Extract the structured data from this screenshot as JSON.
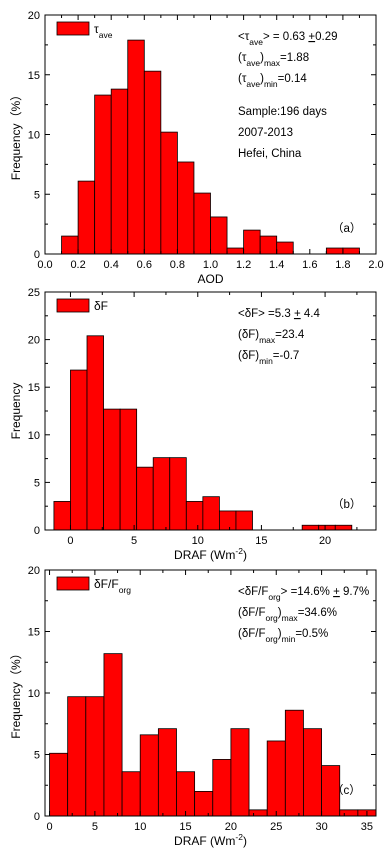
{
  "chart_data": [
    {
      "type": "bar",
      "panel": "(a)",
      "xlabel": "AOD",
      "ylabel": "Frequency（%）",
      "xlim": [
        0.0,
        2.0
      ],
      "ylim": [
        0,
        20
      ],
      "xticks": [
        "0.0",
        "0.2",
        "0.4",
        "0.6",
        "0.8",
        "1.0",
        "1.2",
        "1.4",
        "1.6",
        "1.8",
        "2.0"
      ],
      "yticks": [
        "0",
        "5",
        "10",
        "15",
        "20"
      ],
      "bar_color": "#ff0000",
      "bin_width": 0.1,
      "bin_starts": [
        0.1,
        0.2,
        0.3,
        0.4,
        0.5,
        0.6,
        0.7,
        0.8,
        0.9,
        1.0,
        1.1,
        1.2,
        1.3,
        1.4,
        1.5,
        1.6,
        1.7,
        1.8
      ],
      "values": [
        1.5,
        6.1,
        13.3,
        13.8,
        17.9,
        15.3,
        10.2,
        7.7,
        5.1,
        3.1,
        0.5,
        2.0,
        1.5,
        1.0,
        0,
        0,
        0.5,
        0.5
      ],
      "legend": {
        "base": "τ",
        "sub": "ave",
        "sup": "",
        "tail": ""
      },
      "annotations": [
        {
          "segments": [
            {
              "t": "<τ"
            },
            {
              "t": "ave",
              "s": "sub"
            },
            {
              "t": "> = 0.63 "
            },
            {
              "t": "+",
              "s": "u"
            },
            {
              "t": "0.29"
            }
          ]
        },
        {
          "segments": [
            {
              "t": "(τ"
            },
            {
              "t": "ave",
              "s": "sub"
            },
            {
              "t": ")"
            },
            {
              "t": "max",
              "s": "sub"
            },
            {
              "t": "=1.88"
            }
          ]
        },
        {
          "segments": [
            {
              "t": "(τ"
            },
            {
              "t": "ave",
              "s": "sub"
            },
            {
              "t": ")"
            },
            {
              "t": "min",
              "s": "sub"
            },
            {
              "t": "=0.14"
            }
          ]
        },
        {
          "segments": [
            {
              "t": "Sample:196 days"
            }
          ],
          "gap": true
        },
        {
          "segments": [
            {
              "t": "2007-2013"
            }
          ]
        },
        {
          "segments": [
            {
              "t": "Hefei, China"
            }
          ]
        }
      ],
      "panel_label": "（a）"
    },
    {
      "type": "bar",
      "panel": "(b)",
      "xlabel": "DRAF (Wm",
      "xlabel_sup": "-2",
      "xlabel_tail": ")",
      "ylabel": "Frequency",
      "xlim": [
        -2,
        24
      ],
      "ylim": [
        0,
        25
      ],
      "xticks": [
        "0",
        "5",
        "10",
        "15",
        "20"
      ],
      "xtick_values": [
        0,
        5,
        10,
        15,
        20
      ],
      "yticks": [
        "0",
        "5",
        "10",
        "15",
        "20",
        "25"
      ],
      "bar_color": "#ff0000",
      "bin_width": 1.3,
      "bin_starts": [
        -1.3,
        0,
        1.3,
        2.6,
        3.9,
        5.2,
        6.5,
        7.8,
        9.1,
        10.4,
        11.7,
        13.0,
        14.3,
        15.6,
        16.9,
        18.2,
        19.5,
        20.8,
        22.1
      ],
      "values": [
        3.0,
        16.8,
        20.4,
        12.7,
        12.7,
        6.6,
        7.6,
        7.6,
        3.0,
        3.5,
        2.0,
        2.0,
        0,
        0,
        0,
        0.5,
        0.5,
        0.5,
        0
      ],
      "legend": {
        "base": "δF",
        "sub": "",
        "sup": "",
        "tail": ""
      },
      "annotations": [
        {
          "segments": [
            {
              "t": "<δF> =5.3 "
            },
            {
              "t": "+",
              "s": "u"
            },
            {
              "t": " 4.4"
            }
          ]
        },
        {
          "segments": [
            {
              "t": "(δF)"
            },
            {
              "t": "max",
              "s": "sub"
            },
            {
              "t": "=23.4"
            }
          ]
        },
        {
          "segments": [
            {
              "t": "(δF)"
            },
            {
              "t": "min",
              "s": "sub"
            },
            {
              "t": "=-0.7"
            }
          ]
        }
      ],
      "panel_label": "（b）"
    },
    {
      "type": "bar",
      "panel": "(c)",
      "xlabel": "DRAF (Wm",
      "xlabel_sup": "-2",
      "xlabel_tail": ")",
      "ylabel": "Frequency（%）",
      "xlim": [
        -0.5,
        36
      ],
      "ylim": [
        0,
        20
      ],
      "xticks": [
        "0",
        "5",
        "10",
        "15",
        "20",
        "25",
        "30",
        "35"
      ],
      "xtick_values": [
        0,
        5,
        10,
        15,
        20,
        25,
        30,
        35
      ],
      "yticks": [
        "0",
        "5",
        "10",
        "15",
        "20"
      ],
      "bar_color": "#ff0000",
      "bin_width": 2.0,
      "bin_starts": [
        0,
        2,
        4,
        6,
        8,
        10,
        12,
        14,
        16,
        18,
        20,
        22,
        24,
        26,
        28,
        30,
        32,
        34
      ],
      "values": [
        5.1,
        9.7,
        9.7,
        13.2,
        3.6,
        6.6,
        7.1,
        3.6,
        2.0,
        4.6,
        7.1,
        0.5,
        6.1,
        8.6,
        7.1,
        4.1,
        0.5,
        0.5
      ],
      "legend": {
        "base": "δF/F",
        "sub": "org",
        "sup": "",
        "tail": ""
      },
      "annotations": [
        {
          "segments": [
            {
              "t": "<δF/F"
            },
            {
              "t": "org",
              "s": "sub"
            },
            {
              "t": "> =14.6% "
            },
            {
              "t": "+",
              "s": "u"
            },
            {
              "t": " 9.7%"
            }
          ]
        },
        {
          "segments": [
            {
              "t": "(δF/F"
            },
            {
              "t": "org",
              "s": "sub"
            },
            {
              "t": ")"
            },
            {
              "t": "max",
              "s": "sub"
            },
            {
              "t": "=34.6%"
            }
          ]
        },
        {
          "segments": [
            {
              "t": "(δF/F"
            },
            {
              "t": "org",
              "s": "sub"
            },
            {
              "t": ")"
            },
            {
              "t": "min",
              "s": "sub"
            },
            {
              "t": "=0.5%"
            }
          ]
        }
      ],
      "panel_label": "（c）"
    }
  ]
}
